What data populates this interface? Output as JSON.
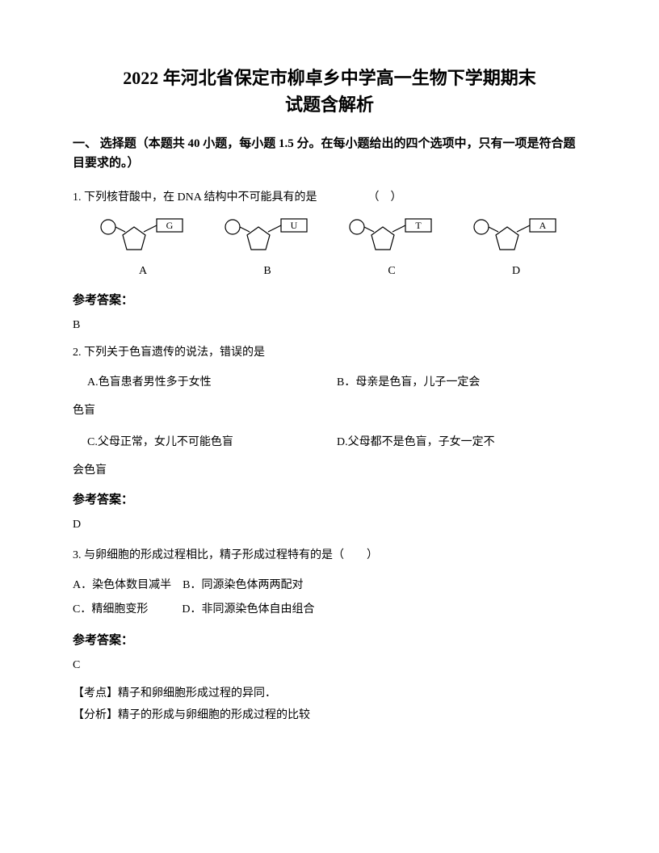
{
  "title_line1": "2022 年河北省保定市柳卓乡中学高一生物下学期期末",
  "title_line2": "试题含解析",
  "section_header": "一、 选择题（本题共 40 小题，每小题 1.5 分。在每小题给出的四个选项中，只有一项是符合题目要求的。）",
  "q1": {
    "text": "1. 下列核苷酸中，在 DNA 结构中不可能具有的是　　　　　（　）",
    "nucleotides": [
      {
        "base": "G",
        "label": "A"
      },
      {
        "base": "U",
        "label": "B"
      },
      {
        "base": "T",
        "label": "C"
      },
      {
        "base": "A",
        "label": "D"
      }
    ],
    "answer_label": "参考答案：",
    "answer": "B"
  },
  "q2": {
    "text": "2. 下列关于色盲遗传的说法，错误的是",
    "optA": "A.色盲患者男性多于女性",
    "optB": "B．母亲是色盲，儿子一定会",
    "optB_cont": "色盲",
    "optC": "C.父母正常，女儿不可能色盲",
    "optD": "D.父母都不是色盲，子女一定不",
    "optD_cont": "会色盲",
    "answer_label": "参考答案：",
    "answer": "D"
  },
  "q3": {
    "text": "3. 与卵细胞的形成过程相比，精子形成过程特有的是（　　）",
    "optAB": "A．染色体数目减半　B．同源染色体两两配对",
    "optCD": "C．精细胞变形　　　D．非同源染色体自由组合",
    "answer_label": "参考答案：",
    "answer": "C",
    "analysis1": "【考点】精子和卵细胞形成过程的异同．",
    "analysis2": "【分析】精子的形成与卵细胞的形成过程的比较"
  },
  "svg": {
    "stroke": "#000000",
    "stroke_width": 1.2,
    "width": 110,
    "height": 50
  }
}
